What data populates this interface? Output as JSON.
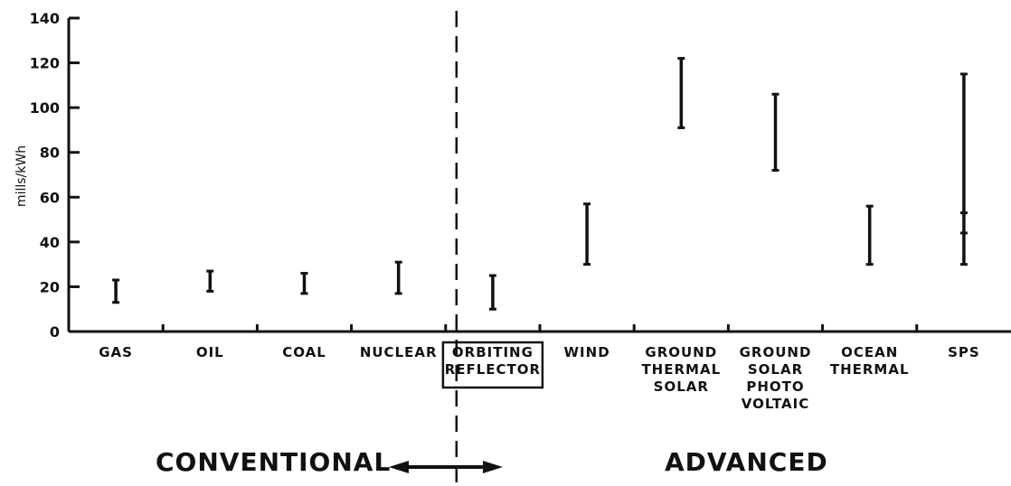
{
  "chart_data": {
    "type": "range-bar",
    "ylabel": "mills/kWh",
    "ylim": [
      0,
      140
    ],
    "yticks": [
      "0",
      "20",
      "40",
      "60",
      "80",
      "100",
      "120",
      "140"
    ],
    "categories": [
      {
        "label": "GAS",
        "low": 13,
        "high": 23
      },
      {
        "label": "OIL",
        "low": 18,
        "high": 27
      },
      {
        "label": "COAL",
        "low": 17,
        "high": 26
      },
      {
        "label": "NUCLEAR",
        "low": 17,
        "high": 31
      },
      {
        "label": "ORBITING REFLECTOR",
        "low": 10,
        "high": 25,
        "boxed": true
      },
      {
        "label": "WIND",
        "low": 30,
        "high": 57
      },
      {
        "label": "GROUND THERMAL SOLAR",
        "low": 91,
        "high": 122
      },
      {
        "label": "GROUND SOLAR PHOTO VOLTAIC",
        "low": 72,
        "high": 106
      },
      {
        "label": "OCEAN THERMAL",
        "low": 30,
        "high": 56
      },
      {
        "label": "SPS",
        "low": 30,
        "high": 115,
        "marks": [
          53,
          44
        ]
      }
    ],
    "groups": {
      "conventional": "CONVENTIONAL",
      "advanced": "ADVANCED"
    }
  }
}
